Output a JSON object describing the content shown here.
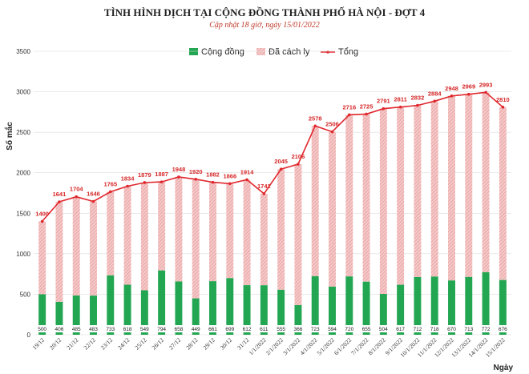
{
  "colors": {
    "community": "#22a651",
    "isolation_fill": "#f4c9c9",
    "isolation_stripe": "#e59090",
    "total": "#e0282e",
    "grid": "#dddddd"
  },
  "chart_data": {
    "type": "bar",
    "title": "TÌNH HÌNH DỊCH TẠI CỘNG ĐỒNG THÀNH PHỐ HÀ NỘI - ĐỢT 4",
    "subtitle": "Cập nhật 18 giờ, ngày 15/01/2022",
    "xlabel": "Ngày",
    "ylabel": "Số mắc",
    "ylim": [
      0,
      3500
    ],
    "yticks": [
      0,
      500,
      1000,
      1500,
      2000,
      2500,
      3000,
      3500
    ],
    "grid": true,
    "legend_position": "top",
    "categories": [
      "19/12",
      "20/12",
      "21/12",
      "22/12",
      "23/12",
      "24/12",
      "25/12",
      "26/12",
      "27/12",
      "28/12",
      "29/12",
      "30/12",
      "31/12",
      "1/1/2022",
      "2/1/2022",
      "3/1/2022",
      "4/1/2022",
      "5/1/2022",
      "6/1/2022",
      "7/1/2022",
      "8/1/2022",
      "9/1/2022",
      "10/1/2022",
      "11/1/2022",
      "12/1/2022",
      "13/1/2022",
      "14/1/2022",
      "15/1/2022"
    ],
    "series": [
      {
        "name": "Cộng đồng",
        "kind": "bar",
        "values": [
          500,
          406,
          485,
          483,
          733,
          618,
          549,
          794,
          658,
          449,
          661,
          699,
          612,
          611,
          555,
          366,
          723,
          594,
          720,
          655,
          504,
          617,
          712,
          718,
          670,
          713,
          772,
          676
        ]
      },
      {
        "name": "Đã cách ly",
        "kind": "bar",
        "values": [
          900,
          1235,
          1219,
          1163,
          1032,
          1216,
          1330,
          1093,
          1290,
          1471,
          1221,
          1167,
          1302,
          1130,
          1490,
          1740,
          1855,
          1912,
          1996,
          2070,
          2287,
          2194,
          2120,
          2166,
          2278,
          2256,
          2221,
          2134
        ]
      },
      {
        "name": "Tổng",
        "kind": "line",
        "values": [
          1400,
          1641,
          1704,
          1646,
          1765,
          1834,
          1879,
          1887,
          1948,
          1920,
          1882,
          1866,
          1914,
          1741,
          2045,
          2106,
          2578,
          2506,
          2716,
          2725,
          2791,
          2811,
          2832,
          2884,
          2948,
          2969,
          2993,
          2810
        ]
      }
    ]
  }
}
